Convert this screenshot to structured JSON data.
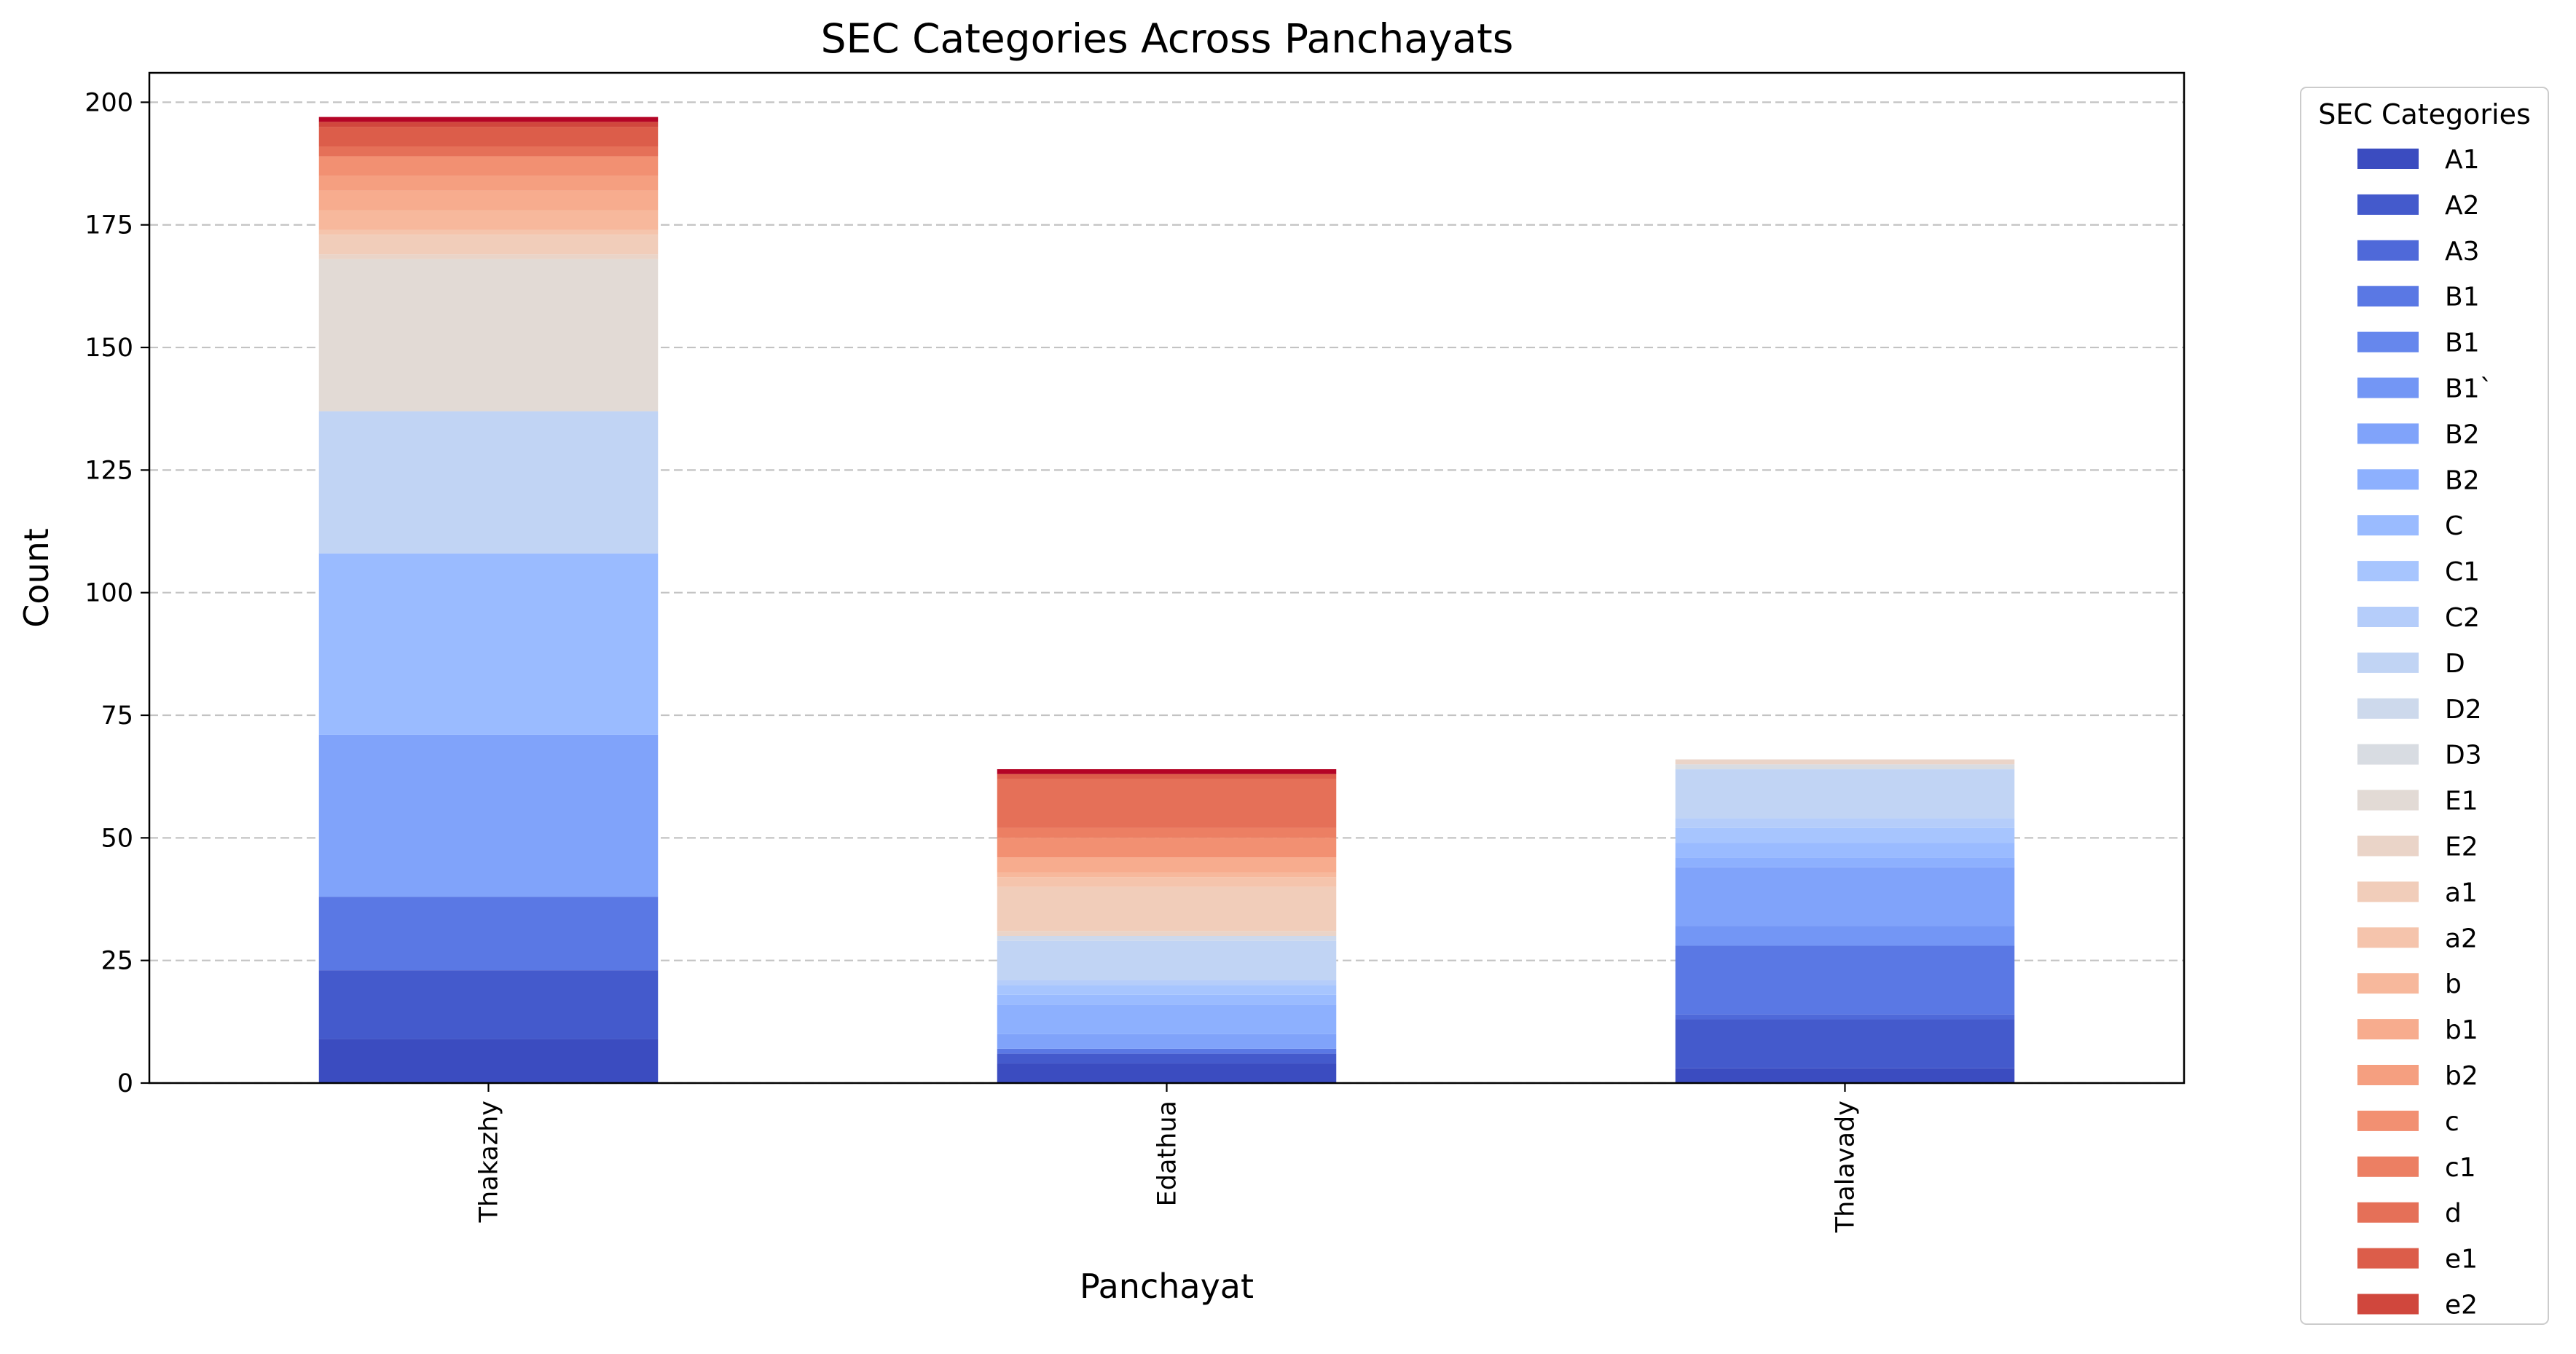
{
  "chart_data": {
    "type": "bar",
    "stacked": true,
    "title": "SEC Categories Across Panchayats",
    "xlabel": "Panchayat",
    "ylabel": "Count",
    "ylim": [
      0,
      206
    ],
    "yticks": [
      0,
      25,
      50,
      75,
      100,
      125,
      150,
      175,
      200
    ],
    "grid": "horizontal dashed",
    "categories": [
      "Thakazhy",
      "Edathua",
      "Thalavady"
    ],
    "legend": {
      "title": "SEC Categories",
      "placement": "outside right"
    },
    "series": [
      {
        "name": "A1",
        "color": "#3b4cc0",
        "values": [
          9,
          4,
          3
        ]
      },
      {
        "name": "A2",
        "color": "#445acc",
        "values": [
          14,
          2,
          10
        ]
      },
      {
        "name": "A3",
        "color": "#4f69d9",
        "values": [
          0,
          0,
          1
        ]
      },
      {
        "name": "B1",
        "color": "#5a78e4",
        "values": [
          15,
          1,
          14
        ]
      },
      {
        "name": "B1",
        "color": "#6687ed",
        "values": [
          0,
          0,
          0
        ]
      },
      {
        "name": "B1`",
        "color": "#7396f5",
        "values": [
          0,
          0,
          4
        ]
      },
      {
        "name": "B2",
        "color": "#80a3fa",
        "values": [
          33,
          3,
          12
        ]
      },
      {
        "name": "B2",
        "color": "#8db0fe",
        "values": [
          0,
          6,
          2
        ]
      },
      {
        "name": "C",
        "color": "#9abbff",
        "values": [
          37,
          2,
          3
        ]
      },
      {
        "name": "C1",
        "color": "#a7c5fe",
        "values": [
          0,
          2,
          3
        ]
      },
      {
        "name": "C2",
        "color": "#b5cdfa",
        "values": [
          0,
          1,
          2
        ]
      },
      {
        "name": "D",
        "color": "#c1d4f4",
        "values": [
          29,
          8,
          10
        ]
      },
      {
        "name": "D2",
        "color": "#cdd9ec",
        "values": [
          0,
          1,
          0
        ]
      },
      {
        "name": "D3",
        "color": "#d8dce2",
        "values": [
          0,
          0,
          1
        ]
      },
      {
        "name": "E1",
        "color": "#e2dad5",
        "values": [
          31,
          0,
          0
        ]
      },
      {
        "name": "E2",
        "color": "#ead4c8",
        "values": [
          1,
          1,
          1
        ]
      },
      {
        "name": "a1",
        "color": "#f1cdba",
        "values": [
          4,
          9,
          0
        ]
      },
      {
        "name": "a2",
        "color": "#f5c4ac",
        "values": [
          1,
          2,
          0
        ]
      },
      {
        "name": "b",
        "color": "#f7b89c",
        "values": [
          4,
          1,
          0
        ]
      },
      {
        "name": "b1",
        "color": "#f7ac8e",
        "values": [
          4,
          3,
          0
        ]
      },
      {
        "name": "b2",
        "color": "#f59f80",
        "values": [
          3,
          0,
          0
        ]
      },
      {
        "name": "c",
        "color": "#f29072",
        "values": [
          4,
          4,
          0
        ]
      },
      {
        "name": "c1",
        "color": "#ec7f63",
        "values": [
          0,
          2,
          0
        ]
      },
      {
        "name": "d",
        "color": "#e57058",
        "values": [
          2,
          10,
          0
        ]
      },
      {
        "name": "e1",
        "color": "#dc5d4a",
        "values": [
          4,
          1,
          0
        ]
      },
      {
        "name": "e2",
        "color": "#d0473d",
        "values": [
          1,
          0,
          0
        ]
      },
      {
        "name": "",
        "color": "#c43032",
        "values": [
          0,
          0,
          0
        ]
      },
      {
        "name": "",
        "color": "#b40426",
        "values": [
          1,
          1,
          0
        ]
      }
    ]
  }
}
